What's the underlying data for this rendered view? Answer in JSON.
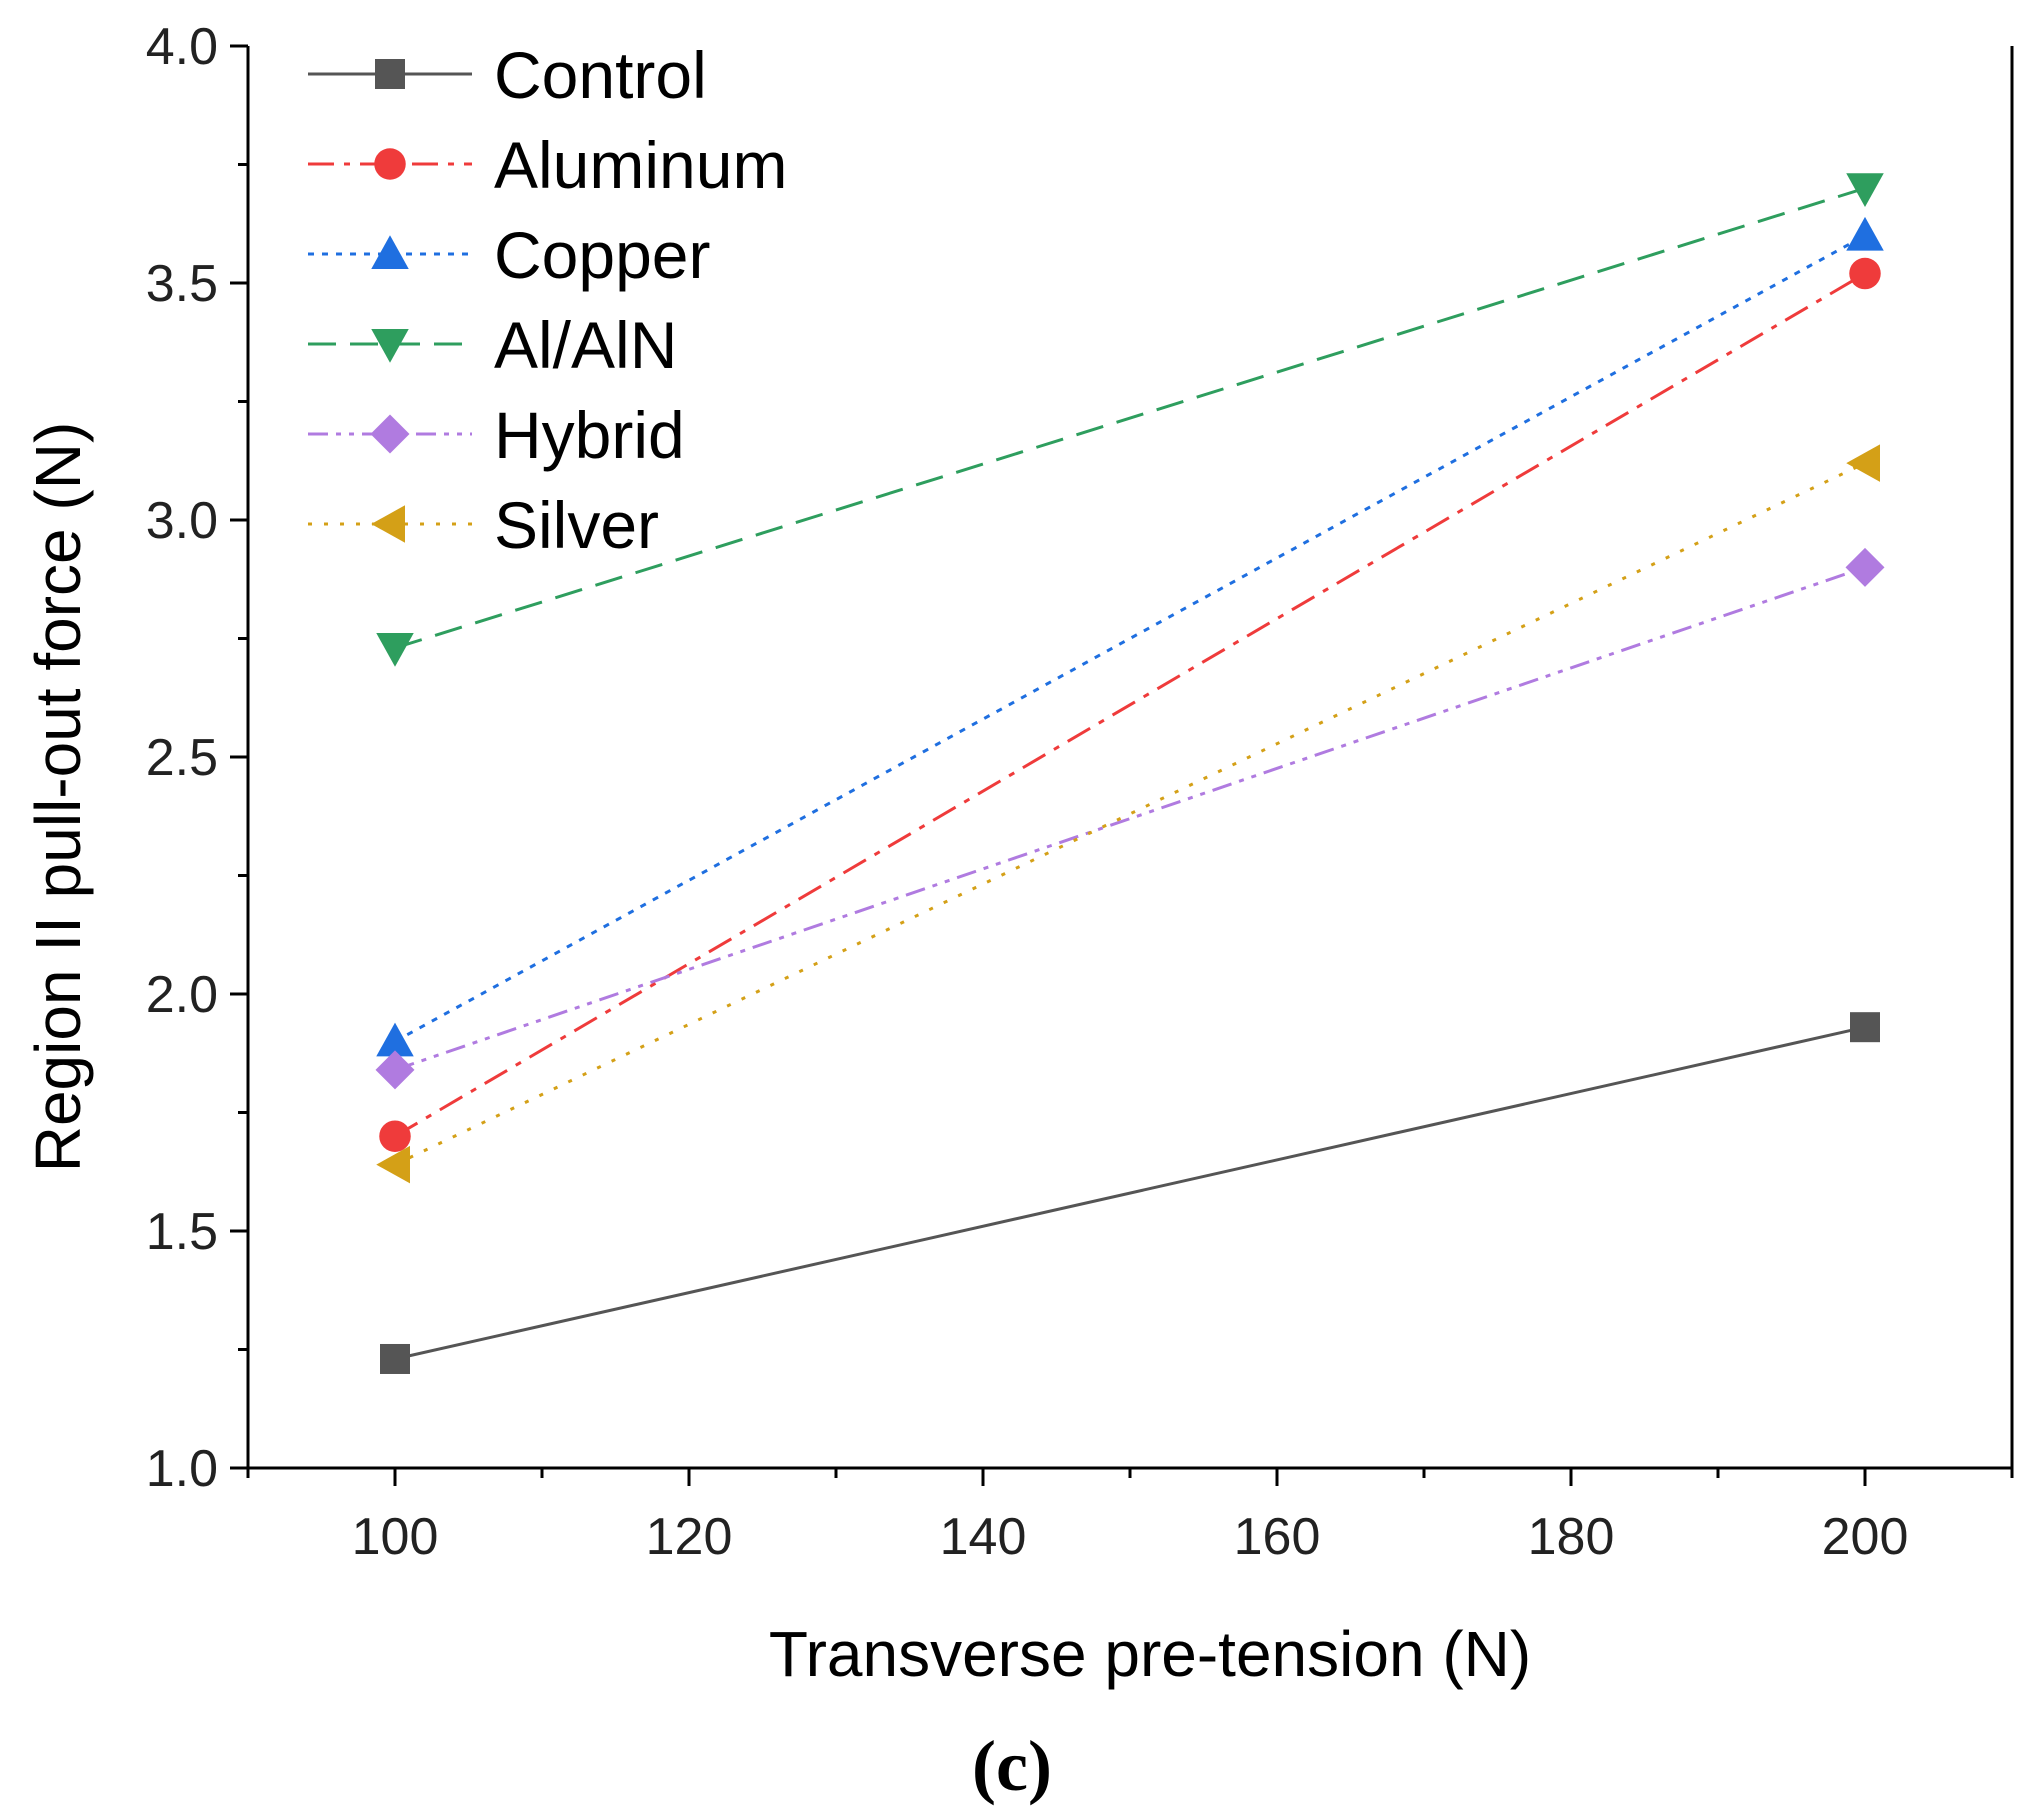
{
  "chart_data": {
    "type": "line",
    "title": "",
    "xlabel": "Transverse pre-tension (N)",
    "ylabel": "Region II pull-out force (N)",
    "caption": "(c)",
    "xlim": [
      90,
      210
    ],
    "ylim": [
      1.0,
      4.0
    ],
    "xticks": [
      100,
      120,
      140,
      160,
      180,
      200
    ],
    "yticks": [
      1.0,
      1.5,
      2.0,
      2.5,
      3.0,
      3.5,
      4.0
    ],
    "x": [
      100,
      200
    ],
    "legend_position": "top-left",
    "series": [
      {
        "name": "Control",
        "values": [
          1.23,
          1.93
        ],
        "color": "#555555",
        "dash": "solid",
        "marker": "square"
      },
      {
        "name": "Aluminum",
        "values": [
          1.7,
          3.52
        ],
        "color": "#ef3b3b",
        "dash": "dashdot",
        "marker": "circle"
      },
      {
        "name": "Copper",
        "values": [
          1.9,
          3.6
        ],
        "color": "#1f6fe0",
        "dash": "dot",
        "marker": "triangle-up"
      },
      {
        "name": "Al/AlN",
        "values": [
          2.73,
          3.7
        ],
        "color": "#2e9e5e",
        "dash": "dash",
        "marker": "triangle-down"
      },
      {
        "name": "Hybrid",
        "values": [
          1.84,
          2.9
        ],
        "color": "#b07be0",
        "dash": "dashdotdot",
        "marker": "diamond"
      },
      {
        "name": "Silver",
        "values": [
          1.64,
          3.12
        ],
        "color": "#d4a017",
        "dash": "shortdot",
        "marker": "triangle-left"
      }
    ]
  }
}
